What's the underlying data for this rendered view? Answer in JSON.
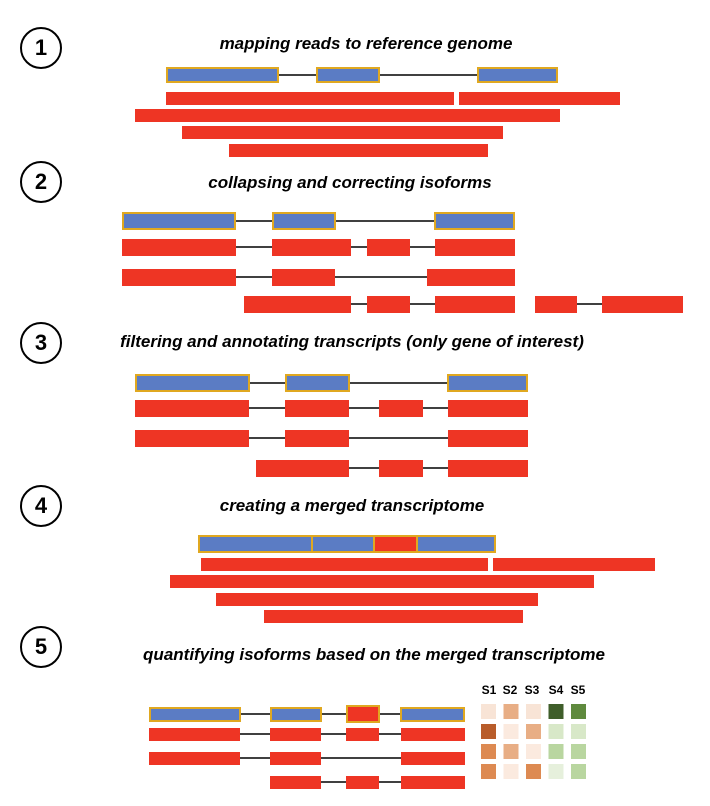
{
  "steps": [
    {
      "number": "1",
      "title": "mapping reads to reference genome"
    },
    {
      "number": "2",
      "title": "collapsing and correcting isoforms"
    },
    {
      "number": "3",
      "title": "filtering and annotating transcripts (only gene of interest)"
    },
    {
      "number": "4",
      "title": "creating a merged transcriptome"
    },
    {
      "number": "5",
      "title": "quantifying isoforms based on the merged transcriptome"
    }
  ],
  "samples": [
    "S1",
    "S2",
    "S3",
    "S4",
    "S5"
  ],
  "colors": {
    "exon_reference": "#5b7cc4",
    "exon_border": "#e0a820",
    "read": "#ee3524",
    "intron": "#000000"
  },
  "heatmap": {
    "rows": [
      [
        "#f8e4d6",
        "#e8ae85",
        "#f8e4d6",
        "#3f5e2a",
        "#5f8a3e"
      ],
      [
        "#b85c2a",
        "#fbeadf",
        "#e8ae85",
        "#d8e8c8",
        "#d8e8c8"
      ],
      [
        "#dd8a52",
        "#e8ae85",
        "#fbeadf",
        "#b9d6a0",
        "#b9d6a0"
      ],
      [
        "#dd8a52",
        "#fbeadf",
        "#dd8a52",
        "#e6f0dc",
        "#b9d6a0"
      ]
    ]
  }
}
